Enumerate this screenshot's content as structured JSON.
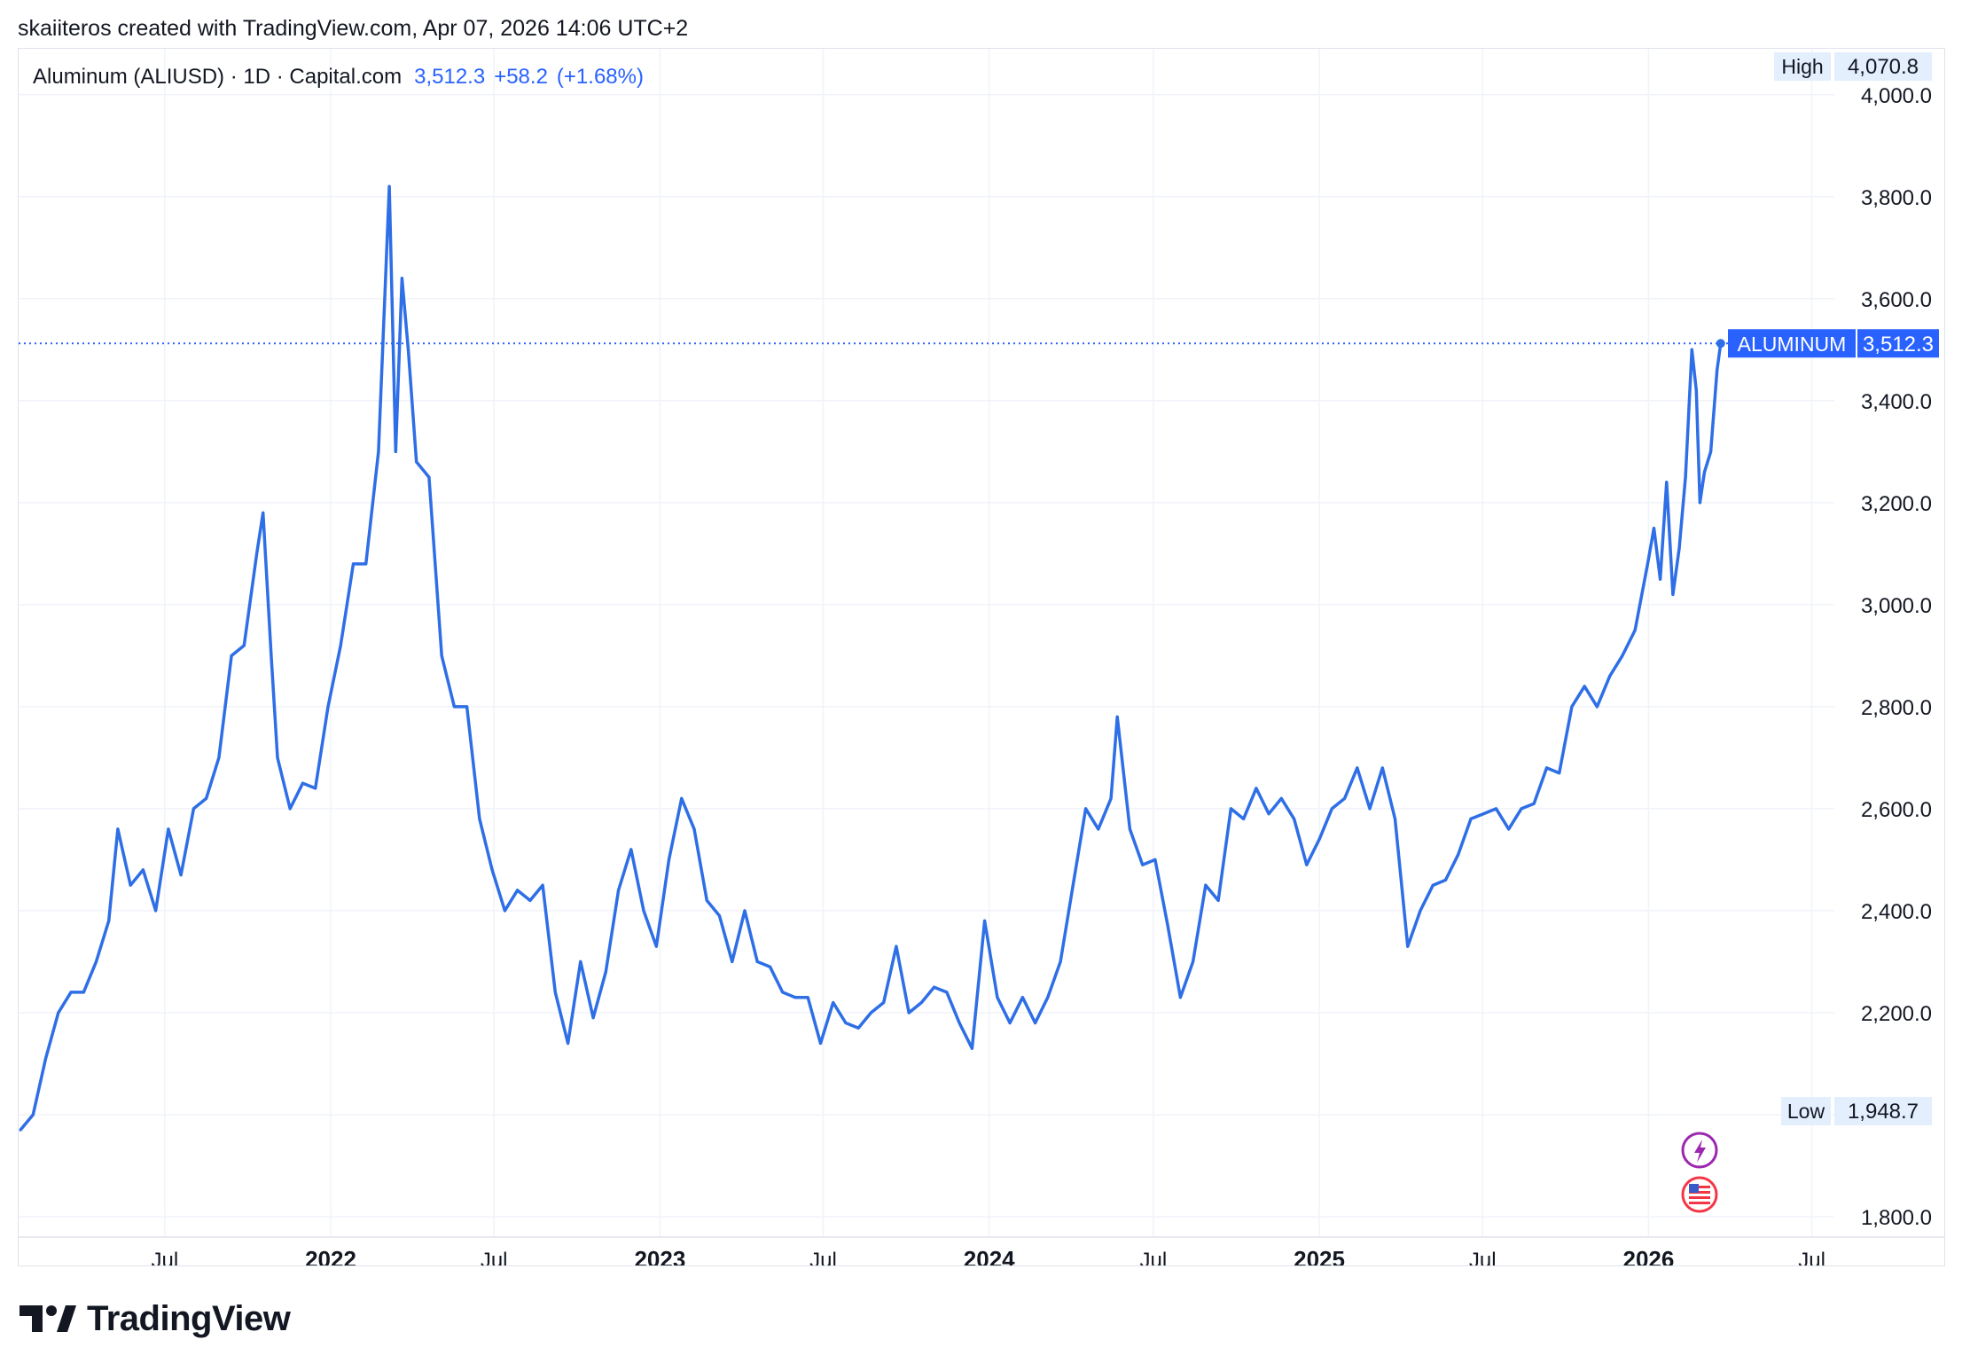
{
  "header": {
    "caption": "skaiiteros created with TradingView.com, Apr 07, 2026 14:06 UTC+2"
  },
  "legend": {
    "symbol": "Aluminum (ALIUSD) · 1D · Capital.com",
    "price": "3,512.3",
    "change": "+58.2",
    "change_pct": "(+1.68%)"
  },
  "brand": {
    "name": "TradingView"
  },
  "badges": {
    "high_label": "High",
    "high_value": "4,070.8",
    "low_label": "Low",
    "low_value": "1,948.7",
    "last_label": "ALUMINUM",
    "last_value": "3,512.3"
  },
  "colors": {
    "line": "#2e6ee6",
    "accent": "#2962ff",
    "grid": "#f0f3fa",
    "axis_text": "#131722",
    "badge_bg": "#e3effd"
  },
  "icons": [
    "lightning-event-icon",
    "us-flag-event-icon"
  ],
  "chart_data": {
    "type": "line",
    "title": "Aluminum (ALIUSD) · 1D · Capital.com",
    "xlabel": "",
    "ylabel": "",
    "ylim": [
      1760,
      4090
    ],
    "yticks": [
      1800,
      2000,
      2200,
      2400,
      2600,
      2800,
      3000,
      3200,
      3400,
      3600,
      3800,
      4000
    ],
    "ytick_labels": [
      "1,800.0",
      "2,000.0",
      "2,200.0",
      "2,400.0",
      "2,600.0",
      "2,800.0",
      "3,000.0",
      "3,200.0",
      "3,400.0",
      "3,600.0",
      "3,800.0",
      "4,000.0"
    ],
    "xlim": [
      "2021-01-20",
      "2026-07-26"
    ],
    "xticks": [
      {
        "date": "2021-07-01",
        "label": "Jul",
        "bold": false
      },
      {
        "date": "2022-01-01",
        "label": "2022",
        "bold": true
      },
      {
        "date": "2022-07-01",
        "label": "Jul",
        "bold": false
      },
      {
        "date": "2023-01-01",
        "label": "2023",
        "bold": true
      },
      {
        "date": "2023-07-01",
        "label": "Jul",
        "bold": false
      },
      {
        "date": "2024-01-01",
        "label": "2024",
        "bold": true
      },
      {
        "date": "2024-07-01",
        "label": "Jul",
        "bold": false
      },
      {
        "date": "2025-01-01",
        "label": "2025",
        "bold": true
      },
      {
        "date": "2025-07-01",
        "label": "Jul",
        "bold": false
      },
      {
        "date": "2026-01-01",
        "label": "2026",
        "bold": true
      },
      {
        "date": "2026-07-01",
        "label": "Jul",
        "bold": false
      }
    ],
    "grid": true,
    "last_price_line": 3512.3,
    "series": [
      {
        "values": [
          [
            "2021-01-22",
            1970
          ],
          [
            "2021-02-05",
            2000
          ],
          [
            "2021-02-19",
            2110
          ],
          [
            "2021-03-05",
            2200
          ],
          [
            "2021-03-19",
            2240
          ],
          [
            "2021-04-02",
            2240
          ],
          [
            "2021-04-16",
            2300
          ],
          [
            "2021-04-30",
            2380
          ],
          [
            "2021-05-10",
            2560
          ],
          [
            "2021-05-24",
            2450
          ],
          [
            "2021-06-07",
            2480
          ],
          [
            "2021-06-21",
            2400
          ],
          [
            "2021-07-05",
            2560
          ],
          [
            "2021-07-19",
            2470
          ],
          [
            "2021-08-02",
            2600
          ],
          [
            "2021-08-16",
            2620
          ],
          [
            "2021-08-30",
            2700
          ],
          [
            "2021-09-13",
            2900
          ],
          [
            "2021-09-27",
            2920
          ],
          [
            "2021-10-11",
            3100
          ],
          [
            "2021-10-18",
            3180
          ],
          [
            "2021-10-27",
            2900
          ],
          [
            "2021-11-03",
            2700
          ],
          [
            "2021-11-17",
            2600
          ],
          [
            "2021-12-01",
            2650
          ],
          [
            "2021-12-15",
            2640
          ],
          [
            "2021-12-29",
            2800
          ],
          [
            "2022-01-12",
            2920
          ],
          [
            "2022-01-26",
            3080
          ],
          [
            "2022-02-09",
            3080
          ],
          [
            "2022-02-23",
            3300
          ],
          [
            "2022-03-07",
            3820
          ],
          [
            "2022-03-14",
            3300
          ],
          [
            "2022-03-21",
            3640
          ],
          [
            "2022-03-28",
            3500
          ],
          [
            "2022-04-06",
            3280
          ],
          [
            "2022-04-20",
            3250
          ],
          [
            "2022-05-04",
            2900
          ],
          [
            "2022-05-18",
            2800
          ],
          [
            "2022-06-01",
            2800
          ],
          [
            "2022-06-15",
            2580
          ],
          [
            "2022-06-29",
            2480
          ],
          [
            "2022-07-13",
            2400
          ],
          [
            "2022-07-27",
            2440
          ],
          [
            "2022-08-10",
            2420
          ],
          [
            "2022-08-24",
            2450
          ],
          [
            "2022-09-07",
            2240
          ],
          [
            "2022-09-21",
            2140
          ],
          [
            "2022-10-05",
            2300
          ],
          [
            "2022-10-19",
            2190
          ],
          [
            "2022-11-02",
            2280
          ],
          [
            "2022-11-16",
            2440
          ],
          [
            "2022-11-30",
            2520
          ],
          [
            "2022-12-14",
            2400
          ],
          [
            "2022-12-28",
            2330
          ],
          [
            "2023-01-11",
            2500
          ],
          [
            "2023-01-25",
            2620
          ],
          [
            "2023-02-08",
            2560
          ],
          [
            "2023-02-22",
            2420
          ],
          [
            "2023-03-08",
            2390
          ],
          [
            "2023-03-22",
            2300
          ],
          [
            "2023-04-05",
            2400
          ],
          [
            "2023-04-19",
            2300
          ],
          [
            "2023-05-03",
            2290
          ],
          [
            "2023-05-17",
            2240
          ],
          [
            "2023-05-31",
            2230
          ],
          [
            "2023-06-14",
            2230
          ],
          [
            "2023-06-28",
            2140
          ],
          [
            "2023-07-12",
            2220
          ],
          [
            "2023-07-26",
            2180
          ],
          [
            "2023-08-09",
            2170
          ],
          [
            "2023-08-23",
            2200
          ],
          [
            "2023-09-06",
            2220
          ],
          [
            "2023-09-20",
            2330
          ],
          [
            "2023-10-04",
            2200
          ],
          [
            "2023-10-18",
            2220
          ],
          [
            "2023-11-01",
            2250
          ],
          [
            "2023-11-15",
            2240
          ],
          [
            "2023-11-29",
            2180
          ],
          [
            "2023-12-13",
            2130
          ],
          [
            "2023-12-27",
            2380
          ],
          [
            "2024-01-10",
            2230
          ],
          [
            "2024-01-24",
            2180
          ],
          [
            "2024-02-07",
            2230
          ],
          [
            "2024-02-21",
            2180
          ],
          [
            "2024-03-06",
            2230
          ],
          [
            "2024-03-20",
            2300
          ],
          [
            "2024-04-03",
            2450
          ],
          [
            "2024-04-17",
            2600
          ],
          [
            "2024-05-01",
            2560
          ],
          [
            "2024-05-15",
            2620
          ],
          [
            "2024-05-22",
            2780
          ],
          [
            "2024-06-05",
            2560
          ],
          [
            "2024-06-19",
            2490
          ],
          [
            "2024-07-03",
            2500
          ],
          [
            "2024-07-17",
            2370
          ],
          [
            "2024-07-31",
            2230
          ],
          [
            "2024-08-14",
            2300
          ],
          [
            "2024-08-28",
            2450
          ],
          [
            "2024-09-11",
            2420
          ],
          [
            "2024-09-25",
            2600
          ],
          [
            "2024-10-09",
            2580
          ],
          [
            "2024-10-23",
            2640
          ],
          [
            "2024-11-06",
            2590
          ],
          [
            "2024-11-20",
            2620
          ],
          [
            "2024-12-04",
            2580
          ],
          [
            "2024-12-18",
            2490
          ],
          [
            "2025-01-01",
            2540
          ],
          [
            "2025-01-15",
            2600
          ],
          [
            "2025-01-29",
            2620
          ],
          [
            "2025-02-12",
            2680
          ],
          [
            "2025-02-26",
            2600
          ],
          [
            "2025-03-12",
            2680
          ],
          [
            "2025-03-26",
            2580
          ],
          [
            "2025-04-09",
            2330
          ],
          [
            "2025-04-23",
            2400
          ],
          [
            "2025-05-07",
            2450
          ],
          [
            "2025-05-21",
            2460
          ],
          [
            "2025-06-04",
            2510
          ],
          [
            "2025-06-18",
            2580
          ],
          [
            "2025-07-02",
            2590
          ],
          [
            "2025-07-16",
            2600
          ],
          [
            "2025-07-30",
            2560
          ],
          [
            "2025-08-13",
            2600
          ],
          [
            "2025-08-27",
            2610
          ],
          [
            "2025-09-10",
            2680
          ],
          [
            "2025-09-24",
            2670
          ],
          [
            "2025-10-08",
            2800
          ],
          [
            "2025-10-22",
            2840
          ],
          [
            "2025-11-05",
            2800
          ],
          [
            "2025-11-19",
            2860
          ],
          [
            "2025-12-03",
            2900
          ],
          [
            "2025-12-17",
            2950
          ],
          [
            "2025-12-31",
            3080
          ],
          [
            "2026-01-07",
            3150
          ],
          [
            "2026-01-14",
            3050
          ],
          [
            "2026-01-21",
            3240
          ],
          [
            "2026-01-28",
            3020
          ],
          [
            "2026-02-04",
            3110
          ],
          [
            "2026-02-11",
            3250
          ],
          [
            "2026-02-18",
            3500
          ],
          [
            "2026-02-23",
            3420
          ],
          [
            "2026-02-27",
            3200
          ],
          [
            "2026-03-04",
            3260
          ],
          [
            "2026-03-11",
            3300
          ],
          [
            "2026-03-18",
            3460
          ],
          [
            "2026-03-22",
            3512.3
          ]
        ]
      }
    ]
  }
}
